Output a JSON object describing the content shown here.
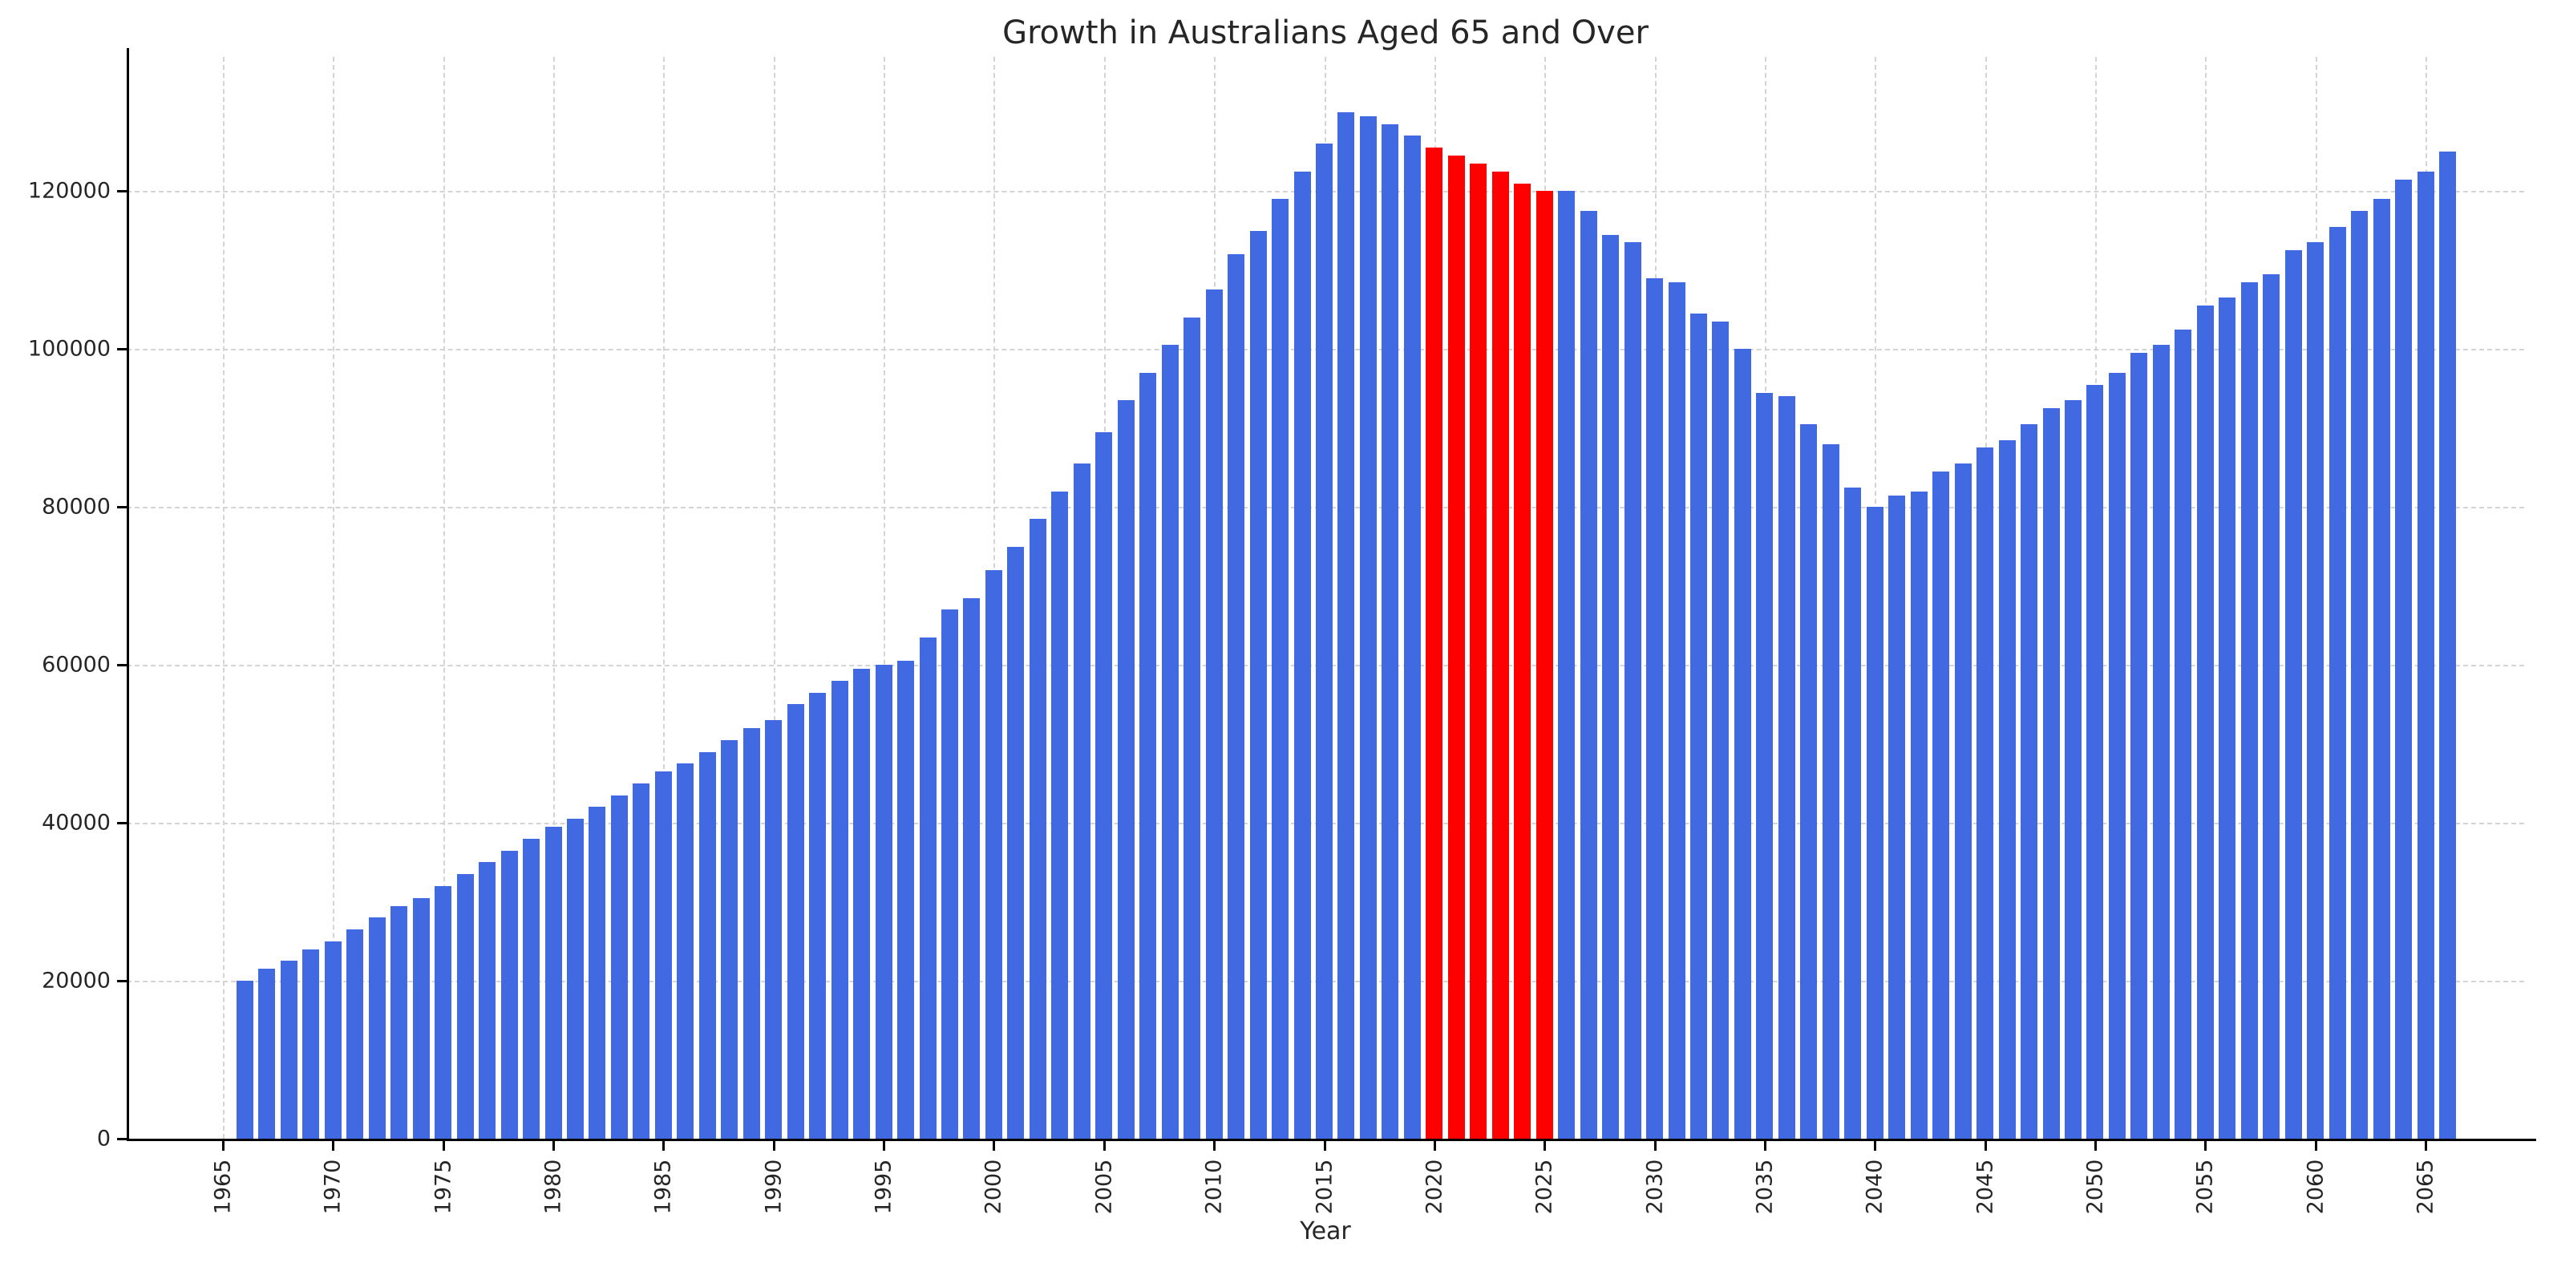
{
  "chart_data": {
    "type": "bar",
    "title": "Growth in Australians Aged 65 and Over",
    "xlabel": "Year",
    "ylabel": "",
    "ylim": [
      0,
      137000
    ],
    "grid": true,
    "legend": "none",
    "bar_color": "#4169E1",
    "highlight_color": "#FF0000",
    "highlight_years": [
      2020,
      2021,
      2022,
      2023,
      2024,
      2025
    ],
    "yticks": [
      0,
      20000,
      40000,
      60000,
      80000,
      100000,
      120000
    ],
    "xticks": [
      1965,
      1970,
      1975,
      1980,
      1985,
      1990,
      1995,
      2000,
      2005,
      2010,
      2015,
      2020,
      2025,
      2030,
      2035,
      2040,
      2045,
      2050,
      2055,
      2060,
      2065
    ],
    "x": [
      1966,
      1967,
      1968,
      1969,
      1970,
      1971,
      1972,
      1973,
      1974,
      1975,
      1976,
      1977,
      1978,
      1979,
      1980,
      1981,
      1982,
      1983,
      1984,
      1985,
      1986,
      1987,
      1988,
      1989,
      1990,
      1991,
      1992,
      1993,
      1994,
      1995,
      1996,
      1997,
      1998,
      1999,
      2000,
      2001,
      2002,
      2003,
      2004,
      2005,
      2006,
      2007,
      2008,
      2009,
      2010,
      2011,
      2012,
      2013,
      2014,
      2015,
      2016,
      2017,
      2018,
      2019,
      2020,
      2021,
      2022,
      2023,
      2024,
      2025,
      2026,
      2027,
      2028,
      2029,
      2030,
      2031,
      2032,
      2033,
      2034,
      2035,
      2036,
      2037,
      2038,
      2039,
      2040,
      2041,
      2042,
      2043,
      2044,
      2045,
      2046,
      2047,
      2048,
      2049,
      2050,
      2051,
      2052,
      2053,
      2054,
      2055,
      2056,
      2057,
      2058,
      2059,
      2060,
      2061,
      2062,
      2063,
      2064,
      2065,
      2066
    ],
    "values": [
      20000,
      21500,
      22500,
      24000,
      25000,
      26500,
      28000,
      29500,
      30500,
      32000,
      33500,
      35000,
      36500,
      38000,
      39500,
      40500,
      42000,
      43500,
      45000,
      46500,
      47500,
      49000,
      50500,
      52000,
      53000,
      55000,
      56500,
      58000,
      59500,
      60000,
      60500,
      63500,
      67000,
      68500,
      72000,
      75000,
      78500,
      82000,
      85500,
      89500,
      93500,
      97000,
      100500,
      104000,
      107500,
      112000,
      115000,
      119000,
      122500,
      126000,
      130000,
      129500,
      128500,
      127000,
      125500,
      124500,
      123500,
      122500,
      121000,
      120000,
      120000,
      117500,
      114500,
      113500,
      109000,
      108500,
      104500,
      103500,
      100000,
      94500,
      94000,
      90500,
      88000,
      82500,
      80000,
      81500,
      82000,
      84500,
      85500,
      87500,
      88500,
      90500,
      92500,
      93500,
      95500,
      97000,
      99500,
      100500,
      102500,
      105500,
      106500,
      108500,
      109500,
      112500,
      113500,
      115500,
      117500,
      119000,
      121500,
      122500,
      125000
    ]
  }
}
